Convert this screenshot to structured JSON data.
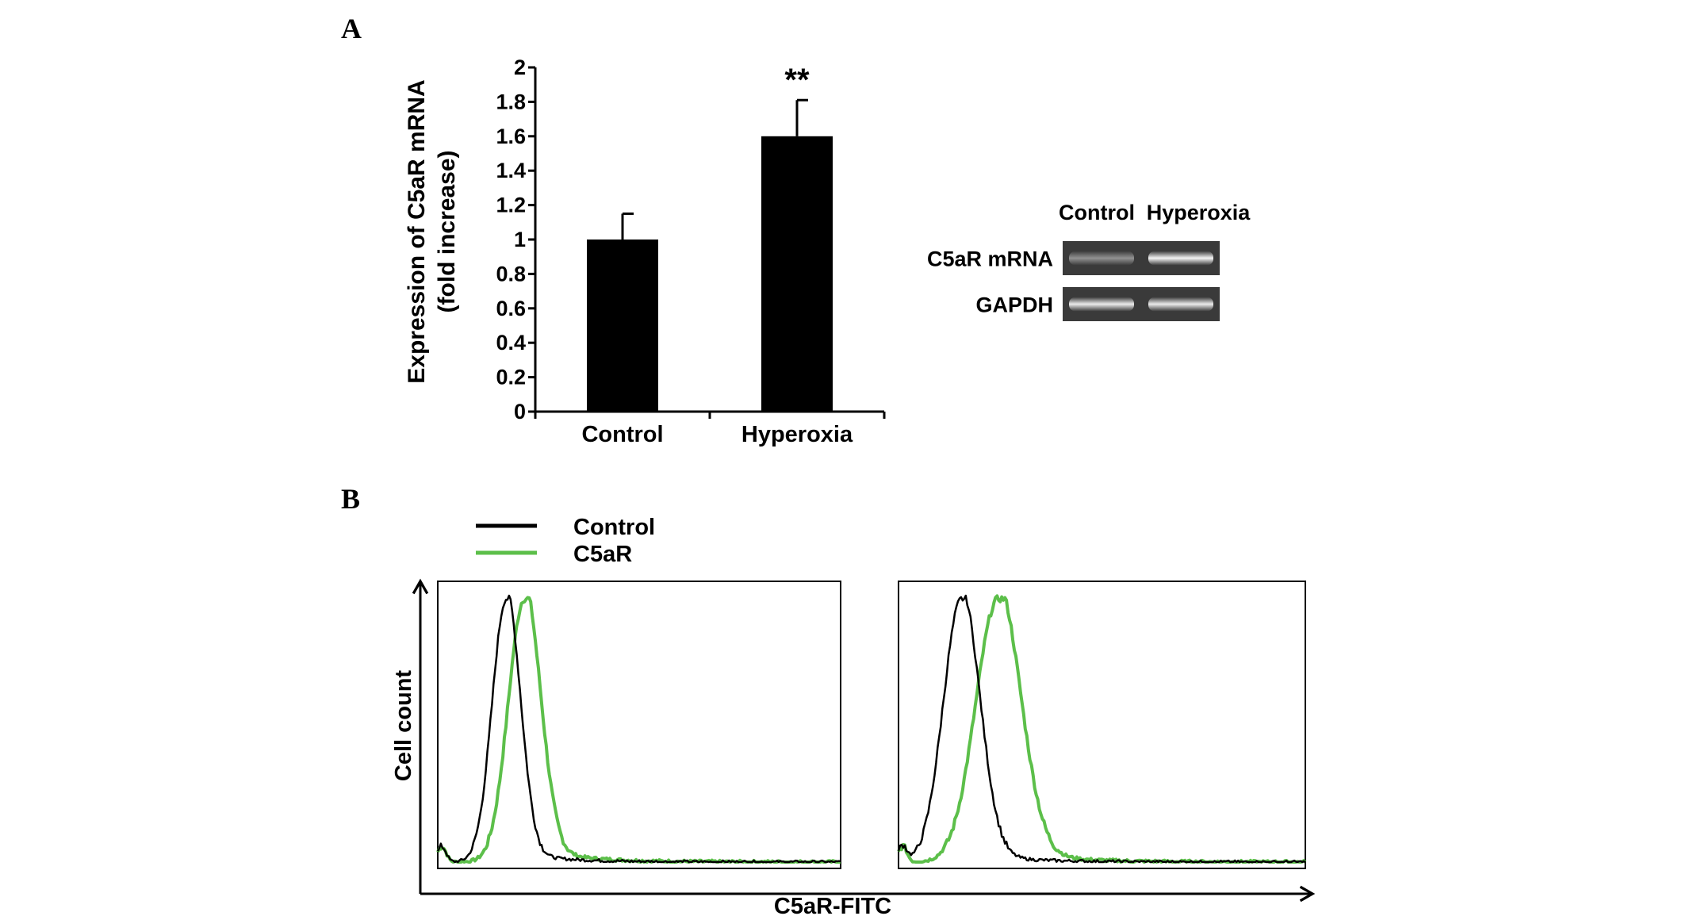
{
  "panels": {
    "a": "A",
    "b": "B"
  },
  "chart_data": [
    {
      "type": "bar",
      "categories": [
        "Control",
        "Hyperoxia"
      ],
      "values": [
        1.0,
        1.6
      ],
      "errors": [
        0.15,
        0.21
      ],
      "annotations": [
        "",
        "**"
      ],
      "ylim": [
        0,
        2
      ],
      "yticks": [
        "0",
        "0.2",
        "0.4",
        "0.6",
        "0.8",
        "1",
        "1.2",
        "1.4",
        "1.6",
        "1.8",
        "2"
      ],
      "ylabel_line1": "Expression of C5aR mRNA",
      "ylabel_line2": "(fold increase)",
      "bar_color": "#000000"
    },
    {
      "type": "line",
      "xlabel": "C5aR-FITC",
      "ylabel": "Cell count",
      "legend": [
        {
          "name": "Control",
          "color": "#000000"
        },
        {
          "name": "C5aR",
          "color": "#5cbf4a"
        }
      ],
      "subplots": [
        {
          "control_peak": 0.17,
          "control_width": 0.035,
          "c5ar_peak": 0.215,
          "c5ar_width": 0.04
        },
        {
          "control_peak": 0.155,
          "control_width": 0.045,
          "c5ar_peak": 0.245,
          "c5ar_width": 0.055
        }
      ]
    }
  ],
  "gel": {
    "columns": [
      "Control",
      "Hyperoxia"
    ],
    "rows": [
      {
        "label": "C5aR mRNA",
        "intensity": [
          0.45,
          0.95
        ]
      },
      {
        "label": "GAPDH",
        "intensity": [
          0.9,
          0.9
        ]
      }
    ]
  }
}
